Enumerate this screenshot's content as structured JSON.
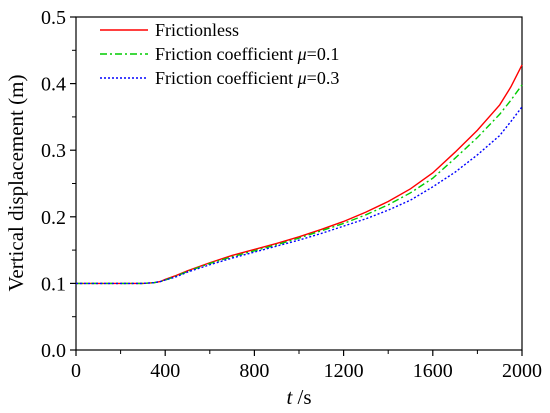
{
  "chart_data": {
    "type": "line",
    "xlabel_var": "t",
    "xlabel_unit": " /s",
    "ylabel": "Vertical displacement (m)",
    "xlim": [
      0,
      2000
    ],
    "ylim": [
      0.0,
      0.5
    ],
    "xticks": [
      0,
      400,
      800,
      1200,
      1600,
      2000
    ],
    "yticks": [
      0.0,
      0.1,
      0.2,
      0.3,
      0.4,
      0.5
    ],
    "grid": false,
    "legend_position": "top-left",
    "series": [
      {
        "name": "Frictionless",
        "legend_prefix": "Frictionless",
        "legend_mu": "",
        "legend_suffix": "",
        "color": "#ff0000",
        "style": "solid",
        "x": [
          0,
          100,
          200,
          300,
          350,
          380,
          400,
          450,
          500,
          600,
          700,
          800,
          900,
          1000,
          1100,
          1200,
          1300,
          1400,
          1500,
          1600,
          1700,
          1800,
          1900,
          1950,
          2000
        ],
        "y": [
          0.1,
          0.1,
          0.1,
          0.1,
          0.101,
          0.103,
          0.106,
          0.112,
          0.119,
          0.131,
          0.142,
          0.151,
          0.16,
          0.17,
          0.181,
          0.193,
          0.207,
          0.223,
          0.242,
          0.266,
          0.297,
          0.33,
          0.368,
          0.395,
          0.428
        ]
      },
      {
        "name": "Friction coefficient μ=0.1",
        "legend_prefix": "Friction coefficient ",
        "legend_mu": "μ",
        "legend_suffix": "=0.1",
        "color": "#00cc00",
        "style": "dashdot",
        "x": [
          0,
          100,
          200,
          300,
          350,
          380,
          400,
          450,
          500,
          600,
          700,
          800,
          900,
          1000,
          1100,
          1200,
          1300,
          1400,
          1500,
          1600,
          1700,
          1800,
          1900,
          1950,
          2000
        ],
        "y": [
          0.1,
          0.1,
          0.1,
          0.1,
          0.101,
          0.103,
          0.105,
          0.111,
          0.118,
          0.13,
          0.14,
          0.149,
          0.158,
          0.168,
          0.179,
          0.19,
          0.203,
          0.218,
          0.236,
          0.258,
          0.288,
          0.319,
          0.354,
          0.375,
          0.398
        ]
      },
      {
        "name": "Friction coefficient μ=0.3",
        "legend_prefix": "Friction coefficient ",
        "legend_mu": "μ",
        "legend_suffix": "=0.3",
        "color": "#0000ff",
        "style": "dotted",
        "x": [
          0,
          100,
          200,
          300,
          350,
          380,
          400,
          450,
          500,
          600,
          700,
          800,
          900,
          1000,
          1100,
          1200,
          1300,
          1400,
          1500,
          1600,
          1700,
          1800,
          1900,
          1950,
          2000
        ],
        "y": [
          0.1,
          0.1,
          0.1,
          0.1,
          0.101,
          0.103,
          0.105,
          0.11,
          0.117,
          0.128,
          0.138,
          0.147,
          0.156,
          0.165,
          0.175,
          0.186,
          0.197,
          0.21,
          0.225,
          0.245,
          0.267,
          0.293,
          0.322,
          0.343,
          0.365
        ]
      }
    ]
  }
}
